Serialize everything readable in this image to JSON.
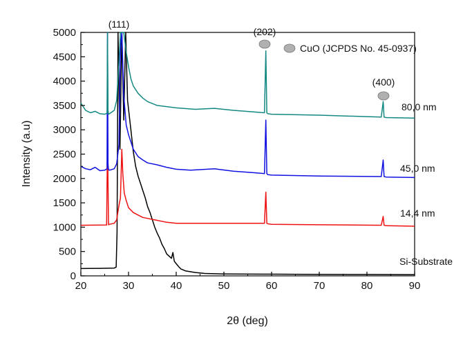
{
  "chart_data": {
    "type": "line",
    "xlabel": "2θ (deg)",
    "ylabel": "Intensity (a.u)",
    "xlim": [
      20,
      90
    ],
    "ylim": [
      0,
      5000
    ],
    "xticks": [
      20,
      30,
      40,
      50,
      60,
      70,
      80,
      90
    ],
    "yticks": [
      0,
      500,
      1000,
      1500,
      2000,
      2500,
      3000,
      3500,
      4000,
      4500,
      5000
    ],
    "grid": false,
    "legend": {
      "text": "CuO (JCPDS No. 45-0937)",
      "marker": "gray-circle",
      "color": "#b0b0b0",
      "placement": "top-right"
    },
    "peak_annotations": [
      {
        "label": "(111)",
        "x": 29.2,
        "y": 5000
      },
      {
        "label": "(202)",
        "x": 58.9,
        "y": 4900
      },
      {
        "label": "(400)",
        "x": 83.5,
        "y": 3860
      }
    ],
    "series": [
      {
        "name": "Si-Substrate",
        "color": "#000000",
        "x": [
          20,
          24,
          27,
          27.4,
          27.6,
          27.8,
          28.2,
          28.6,
          29,
          29.4,
          29.8,
          30.5,
          31,
          31.5,
          32,
          32.5,
          33,
          33.5,
          34,
          34.5,
          35,
          35.5,
          36,
          36.5,
          37,
          37.5,
          38,
          39,
          39.3,
          39.6,
          40,
          40.5,
          41,
          42,
          44,
          46,
          50,
          60,
          70,
          80,
          90
        ],
        "y": [
          150,
          155,
          160,
          180,
          900,
          5000,
          2600,
          5000,
          3200,
          5000,
          3600,
          3000,
          2550,
          2250,
          2050,
          1900,
          1750,
          1600,
          1420,
          1300,
          1150,
          1000,
          880,
          780,
          650,
          560,
          450,
          360,
          480,
          300,
          250,
          190,
          140,
          100,
          70,
          50,
          40,
          35,
          30,
          28,
          25
        ]
      },
      {
        "name": "14,4 nm",
        "color": "#ee1111",
        "x": [
          20,
          25.4,
          25.6,
          25.8,
          26,
          27,
          27.5,
          28,
          28.3,
          28.6,
          28.8,
          29.1,
          29.5,
          30,
          31,
          32,
          33,
          34,
          35,
          36,
          38,
          40,
          50,
          58.5,
          58.8,
          59,
          59.2,
          60,
          70,
          83,
          83.4,
          83.6,
          84,
          90
        ],
        "y": [
          1040,
          1045,
          2850,
          1050,
          1060,
          1080,
          1150,
          1450,
          1600,
          2600,
          2100,
          1700,
          1550,
          1400,
          1300,
          1250,
          1200,
          1180,
          1160,
          1140,
          1100,
          1080,
          1080,
          1080,
          1720,
          1080,
          1070,
          1060,
          1050,
          1040,
          1220,
          1040,
          1030,
          1020
        ]
      },
      {
        "name": "45,0 nm",
        "color": "#1010e0",
        "x": [
          20,
          21,
          22,
          23,
          24,
          25,
          25.5,
          25.6,
          25.7,
          25.8,
          26,
          27,
          27.5,
          28,
          28.3,
          28.6,
          29,
          29.5,
          30,
          31,
          32,
          33,
          34,
          36,
          38,
          40,
          43,
          48,
          52,
          56,
          58.5,
          58.8,
          59,
          59.2,
          60,
          70,
          83,
          83.4,
          83.6,
          84,
          90
        ],
        "y": [
          2250,
          2200,
          2180,
          2230,
          2160,
          2170,
          2200,
          5000,
          2300,
          2180,
          2170,
          2200,
          2300,
          2700,
          4700,
          5000,
          3700,
          3100,
          2900,
          2600,
          2450,
          2380,
          2320,
          2280,
          2230,
          2190,
          2170,
          2200,
          2150,
          2120,
          2100,
          3200,
          2100,
          2080,
          2070,
          2050,
          2040,
          2380,
          2040,
          2030,
          2020
        ]
      },
      {
        "name": "80,0 nm",
        "color": "#138882",
        "x": [
          20,
          21,
          22,
          23,
          24,
          25,
          25.5,
          25.6,
          25.7,
          25.8,
          26,
          27,
          27.5,
          28,
          28.3,
          28.6,
          29,
          29.5,
          30,
          30.5,
          31,
          32,
          33,
          34,
          36,
          40,
          44,
          48,
          52,
          56,
          58.5,
          58.8,
          59,
          59.2,
          60,
          70,
          83,
          83.4,
          83.6,
          84,
          90
        ],
        "y": [
          3550,
          3400,
          3350,
          3380,
          3330,
          3320,
          3340,
          5000,
          3400,
          3320,
          3330,
          3400,
          3600,
          4400,
          5000,
          5000,
          5000,
          4600,
          4300,
          4050,
          3900,
          3750,
          3650,
          3580,
          3500,
          3450,
          3420,
          3440,
          3400,
          3370,
          3350,
          4620,
          3350,
          3330,
          3320,
          3300,
          3260,
          3580,
          3260,
          3250,
          3240
        ]
      }
    ]
  }
}
